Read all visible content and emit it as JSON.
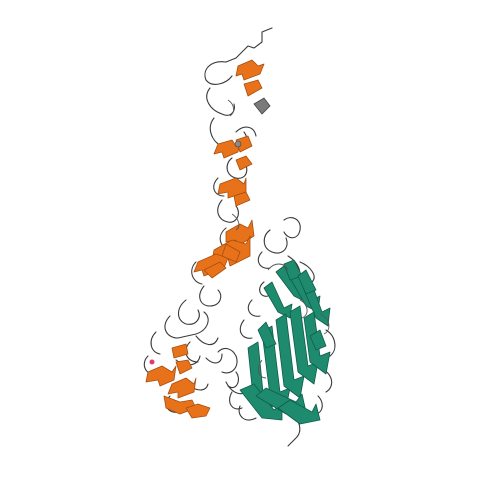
{
  "image": {
    "kind": "protein-ribbon-structure",
    "background_color": "#ffffff",
    "chains": [
      {
        "name": "chain-orange",
        "color": "#e8721a",
        "edge_color": "#a84e0c",
        "style": "ribbon"
      },
      {
        "name": "chain-teal",
        "color": "#1e8a6e",
        "edge_color": "#0f5e4a",
        "style": "ribbon"
      },
      {
        "name": "loop-coil",
        "color": "#3a3a3a",
        "style": "coil"
      }
    ],
    "ligand_color": "#7a7a7a",
    "highlight_color": "#e03a6a"
  }
}
